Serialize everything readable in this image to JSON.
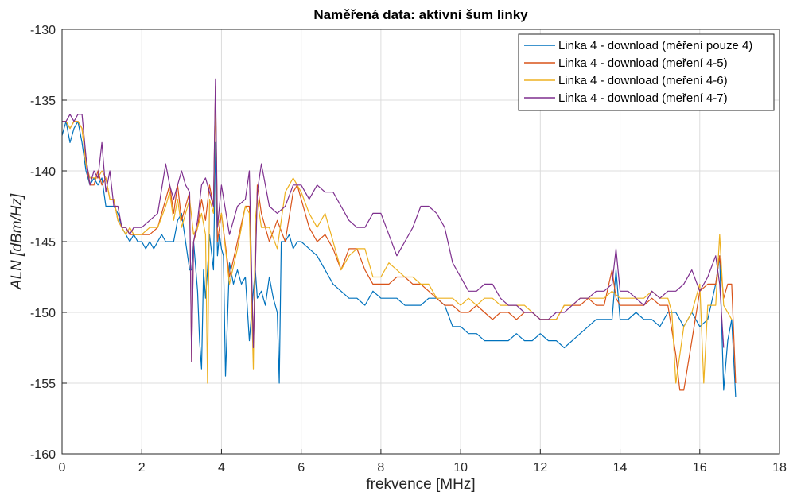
{
  "chart_data": {
    "type": "line",
    "title": "Naměřená data: aktivní šum linky",
    "xlabel": "frekvence [MHz]",
    "ylabel": "ALN [dBm/Hz]",
    "xlim": [
      0,
      18
    ],
    "ylim": [
      -160,
      -130
    ],
    "xticks": [
      "0",
      "2",
      "4",
      "6",
      "8",
      "10",
      "12",
      "14",
      "16",
      "18"
    ],
    "yticks": [
      "-130",
      "-135",
      "-140",
      "-145",
      "-150",
      "-155",
      "-160"
    ],
    "grid": true,
    "legend_position": "top-right",
    "series": [
      {
        "name": "Linka 4 - download (měření pouze 4)",
        "color": "#0072BD",
        "x": [
          0.0,
          0.1,
          0.2,
          0.3,
          0.4,
          0.5,
          0.6,
          0.7,
          0.8,
          0.9,
          1.0,
          1.1,
          1.2,
          1.3,
          1.4,
          1.5,
          1.6,
          1.7,
          1.8,
          1.9,
          2.0,
          2.1,
          2.2,
          2.3,
          2.4,
          2.5,
          2.6,
          2.7,
          2.8,
          2.9,
          3.0,
          3.1,
          3.2,
          3.25,
          3.3,
          3.4,
          3.45,
          3.5,
          3.55,
          3.6,
          3.65,
          3.7,
          3.8,
          3.85,
          3.9,
          3.95,
          4.0,
          4.05,
          4.1,
          4.2,
          4.3,
          4.4,
          4.5,
          4.6,
          4.7,
          4.8,
          4.85,
          4.9,
          5.0,
          5.1,
          5.2,
          5.3,
          5.4,
          5.45,
          5.5,
          5.6,
          5.7,
          5.8,
          5.9,
          6.0,
          6.2,
          6.4,
          6.6,
          6.8,
          7.0,
          7.2,
          7.4,
          7.6,
          7.8,
          8.0,
          8.2,
          8.4,
          8.6,
          8.8,
          9.0,
          9.2,
          9.4,
          9.6,
          9.8,
          10.0,
          10.2,
          10.4,
          10.6,
          10.8,
          11.0,
          11.2,
          11.4,
          11.6,
          11.8,
          12.0,
          12.2,
          12.4,
          12.6,
          12.8,
          13.0,
          13.2,
          13.4,
          13.6,
          13.8,
          13.9,
          14.0,
          14.2,
          14.4,
          14.6,
          14.8,
          15.0,
          15.2,
          15.4,
          15.6,
          15.8,
          16.0,
          16.2,
          16.4,
          16.5,
          16.6,
          16.7,
          16.8,
          16.9
        ],
        "y": [
          -137.5,
          -136.5,
          -138,
          -137,
          -136.5,
          -138,
          -140,
          -141,
          -140.5,
          -141,
          -140.5,
          -142.5,
          -142.5,
          -142.5,
          -143,
          -144,
          -144.5,
          -145,
          -144.5,
          -145,
          -145,
          -145.5,
          -145,
          -145.5,
          -145,
          -144.5,
          -145,
          -145,
          -145,
          -143.5,
          -143,
          -145,
          -147,
          -147,
          -145,
          -148.5,
          -152,
          -154,
          -147,
          -149,
          -147,
          -144.5,
          -147,
          -138,
          -146,
          -144.5,
          -145.5,
          -146,
          -154.5,
          -146.5,
          -148,
          -147,
          -148,
          -147.5,
          -152,
          -148.5,
          -147,
          -149,
          -148.5,
          -149.5,
          -147.5,
          -149,
          -150,
          -155,
          -145,
          -145,
          -144.5,
          -145.5,
          -145,
          -145,
          -145.5,
          -146,
          -147,
          -148,
          -148.5,
          -149,
          -149,
          -149.5,
          -148.5,
          -149,
          -149,
          -149,
          -149.5,
          -149.5,
          -149.5,
          -149,
          -149,
          -149.5,
          -151,
          -151,
          -151.5,
          -151.5,
          -152,
          -152,
          -152,
          -152,
          -151.5,
          -152,
          -152,
          -151.5,
          -152,
          -152,
          -152.5,
          -152,
          -151.5,
          -151,
          -150.5,
          -150.5,
          -150.5,
          -147,
          -150.5,
          -150.5,
          -150,
          -150.5,
          -150.5,
          -151,
          -150,
          -150,
          -151,
          -150,
          -151,
          -150.5,
          -148,
          -146,
          -155.5,
          -152,
          -150.5,
          -156
        ]
      },
      {
        "name": "Linka 4 - download (meření 4-5)",
        "color": "#D95319",
        "x": [
          0.0,
          0.1,
          0.2,
          0.3,
          0.4,
          0.5,
          0.6,
          0.7,
          0.8,
          0.9,
          1.0,
          1.1,
          1.2,
          1.3,
          1.4,
          1.5,
          1.6,
          1.7,
          1.8,
          1.9,
          2.0,
          2.2,
          2.4,
          2.6,
          2.7,
          2.8,
          2.9,
          3.0,
          3.1,
          3.2,
          3.25,
          3.3,
          3.4,
          3.5,
          3.6,
          3.7,
          3.8,
          3.85,
          3.9,
          4.0,
          4.2,
          4.4,
          4.6,
          4.7,
          4.8,
          4.9,
          5.0,
          5.2,
          5.4,
          5.6,
          5.8,
          5.9,
          6.0,
          6.2,
          6.4,
          6.6,
          6.8,
          7.0,
          7.2,
          7.4,
          7.6,
          7.8,
          8.0,
          8.2,
          8.4,
          8.6,
          8.8,
          9.0,
          9.2,
          9.4,
          9.6,
          9.8,
          10.0,
          10.2,
          10.4,
          10.6,
          10.8,
          11.0,
          11.2,
          11.4,
          11.6,
          11.8,
          12.0,
          12.2,
          12.4,
          12.6,
          12.8,
          13.0,
          13.2,
          13.4,
          13.6,
          13.8,
          13.9,
          14.0,
          14.2,
          14.4,
          14.6,
          14.8,
          15.0,
          15.2,
          15.4,
          15.5,
          15.6,
          15.8,
          16.0,
          16.2,
          16.4,
          16.5,
          16.6,
          16.7,
          16.8,
          16.9
        ],
        "y": [
          -136.5,
          -136.5,
          -137,
          -136.5,
          -136.5,
          -137,
          -139.5,
          -141,
          -141,
          -140,
          -141,
          -140.5,
          -142,
          -142,
          -143.5,
          -144,
          -144,
          -144.5,
          -144.5,
          -144.5,
          -144.5,
          -144.5,
          -144,
          -142,
          -141,
          -143,
          -141,
          -143.5,
          -142.5,
          -141.5,
          -153.5,
          -145,
          -144,
          -142,
          -143.5,
          -141,
          -142.5,
          -134,
          -145,
          -143,
          -147.5,
          -145,
          -142.5,
          -142.5,
          -152.5,
          -141,
          -143,
          -145,
          -143.5,
          -145,
          -141.5,
          -141,
          -142,
          -144,
          -145,
          -144.5,
          -145.5,
          -147,
          -145.5,
          -145.5,
          -147,
          -148,
          -148,
          -148,
          -147.5,
          -147.5,
          -148,
          -148,
          -148.5,
          -149,
          -149.5,
          -149.5,
          -150,
          -150,
          -149.5,
          -150,
          -150.5,
          -150,
          -150,
          -150.5,
          -150,
          -150,
          -150.5,
          -150.5,
          -150.5,
          -149.5,
          -149.5,
          -149.5,
          -149,
          -149.5,
          -149.5,
          -147,
          -149,
          -149.5,
          -149.5,
          -149.5,
          -149.5,
          -149,
          -149.5,
          -149.5,
          -153,
          -155.5,
          -155.5,
          -152,
          -148.5,
          -148,
          -148,
          -146,
          -149,
          -148,
          -148,
          -155
        ]
      },
      {
        "name": "Linka 4 - download (meření 4-6)",
        "color": "#EDB120",
        "x": [
          0.0,
          0.1,
          0.2,
          0.3,
          0.4,
          0.5,
          0.6,
          0.7,
          0.8,
          0.9,
          1.0,
          1.1,
          1.2,
          1.3,
          1.4,
          1.5,
          1.6,
          1.7,
          1.8,
          1.9,
          2.0,
          2.2,
          2.4,
          2.6,
          2.7,
          2.8,
          2.9,
          3.0,
          3.1,
          3.2,
          3.3,
          3.4,
          3.5,
          3.6,
          3.65,
          3.7,
          3.8,
          3.85,
          3.9,
          4.0,
          4.2,
          4.4,
          4.6,
          4.7,
          4.8,
          4.85,
          4.9,
          5.0,
          5.2,
          5.4,
          5.6,
          5.8,
          6.0,
          6.2,
          6.4,
          6.6,
          6.8,
          7.0,
          7.2,
          7.4,
          7.6,
          7.8,
          8.0,
          8.2,
          8.4,
          8.6,
          8.8,
          9.0,
          9.2,
          9.4,
          9.6,
          9.8,
          10.0,
          10.2,
          10.4,
          10.6,
          10.8,
          11.0,
          11.2,
          11.4,
          11.6,
          11.8,
          12.0,
          12.2,
          12.4,
          12.6,
          12.8,
          13.0,
          13.2,
          13.4,
          13.6,
          13.8,
          14.0,
          14.2,
          14.4,
          14.6,
          14.8,
          15.0,
          15.2,
          15.3,
          15.4,
          15.6,
          15.8,
          16.0,
          16.1,
          16.2,
          16.4,
          16.5,
          16.6,
          16.7,
          16.8
        ],
        "y": [
          -136.5,
          -136.5,
          -137,
          -136.5,
          -136.5,
          -137,
          -139.5,
          -140.5,
          -140.5,
          -140.5,
          -140,
          -140.5,
          -142,
          -142,
          -143.5,
          -144,
          -144.5,
          -144,
          -144.5,
          -144.5,
          -144.5,
          -144,
          -144,
          -142.5,
          -141.5,
          -143.5,
          -142,
          -144,
          -143,
          -142,
          -144.5,
          -144,
          -143,
          -144.5,
          -155,
          -142,
          -143,
          -135,
          -144,
          -143,
          -148,
          -145.5,
          -142.5,
          -143,
          -154,
          -143.5,
          -142,
          -144,
          -144,
          -145.5,
          -141.5,
          -140.5,
          -141.5,
          -143,
          -144,
          -143,
          -145,
          -147,
          -146,
          -145.5,
          -145.5,
          -147.5,
          -147.5,
          -146.5,
          -147,
          -147.5,
          -147.5,
          -148,
          -148,
          -149,
          -149,
          -149,
          -149.5,
          -149,
          -149.5,
          -149,
          -149,
          -149.5,
          -149.5,
          -149.5,
          -149.5,
          -150,
          -150.5,
          -150.5,
          -150.5,
          -149.5,
          -149.5,
          -149,
          -149,
          -149,
          -149,
          -148.5,
          -149,
          -149,
          -149,
          -149,
          -148.5,
          -149,
          -149,
          -150,
          -155,
          -151,
          -150,
          -148,
          -155,
          -149.5,
          -149.5,
          -144.5,
          -149.5,
          -150,
          -150.5
        ]
      },
      {
        "name": "Linka 4 - download (meření 4-7)",
        "color": "#7E2F8E",
        "x": [
          0.0,
          0.1,
          0.2,
          0.3,
          0.4,
          0.5,
          0.6,
          0.7,
          0.8,
          0.9,
          1.0,
          1.1,
          1.2,
          1.3,
          1.4,
          1.5,
          1.6,
          1.7,
          1.8,
          1.9,
          2.0,
          2.2,
          2.4,
          2.6,
          2.7,
          2.8,
          2.9,
          3.0,
          3.1,
          3.2,
          3.25,
          3.3,
          3.4,
          3.5,
          3.6,
          3.7,
          3.8,
          3.85,
          3.9,
          4.0,
          4.2,
          4.4,
          4.6,
          4.7,
          4.8,
          4.9,
          5.0,
          5.2,
          5.4,
          5.6,
          5.8,
          6.0,
          6.2,
          6.4,
          6.6,
          6.8,
          7.0,
          7.2,
          7.4,
          7.6,
          7.8,
          8.0,
          8.2,
          8.4,
          8.6,
          8.8,
          9.0,
          9.2,
          9.4,
          9.6,
          9.8,
          10.0,
          10.2,
          10.4,
          10.6,
          10.8,
          11.0,
          11.2,
          11.4,
          11.6,
          11.8,
          12.0,
          12.2,
          12.4,
          12.6,
          12.8,
          13.0,
          13.2,
          13.4,
          13.6,
          13.8,
          13.9,
          14.0,
          14.2,
          14.4,
          14.6,
          14.8,
          15.0,
          15.2,
          15.4,
          15.6,
          15.8,
          16.0,
          16.2,
          16.4,
          16.5,
          16.6
        ],
        "y": [
          -136.5,
          -136.5,
          -136,
          -136.5,
          -136,
          -136,
          -139,
          -141,
          -140,
          -140.5,
          -138,
          -141.5,
          -140,
          -142.5,
          -142.5,
          -144,
          -144,
          -144.5,
          -144,
          -144,
          -144,
          -143.5,
          -143,
          -139.5,
          -141,
          -142,
          -141,
          -140,
          -141,
          -141.5,
          -153.5,
          -145,
          -143.5,
          -141,
          -140.5,
          -141.5,
          -142.5,
          -133.5,
          -144,
          -141,
          -144.5,
          -142.5,
          -142,
          -140,
          -152.5,
          -141.5,
          -139.5,
          -142.5,
          -143,
          -142.5,
          -141,
          -141,
          -142,
          -141,
          -141.5,
          -141.5,
          -142.5,
          -143.5,
          -144,
          -144,
          -143,
          -143,
          -144.5,
          -146,
          -145,
          -144,
          -142.5,
          -142.5,
          -143,
          -144,
          -146.5,
          -147.5,
          -148.5,
          -148.5,
          -148,
          -148,
          -149,
          -149.5,
          -149.5,
          -150,
          -150,
          -150.5,
          -150.5,
          -150,
          -150,
          -149.5,
          -149,
          -149,
          -148.5,
          -148.5,
          -148,
          -145.5,
          -148.5,
          -148.5,
          -149,
          -149.5,
          -148.5,
          -149,
          -148.5,
          -148.5,
          -148,
          -147,
          -148.5,
          -147.5,
          -146,
          -148,
          -152.5
        ]
      }
    ]
  }
}
